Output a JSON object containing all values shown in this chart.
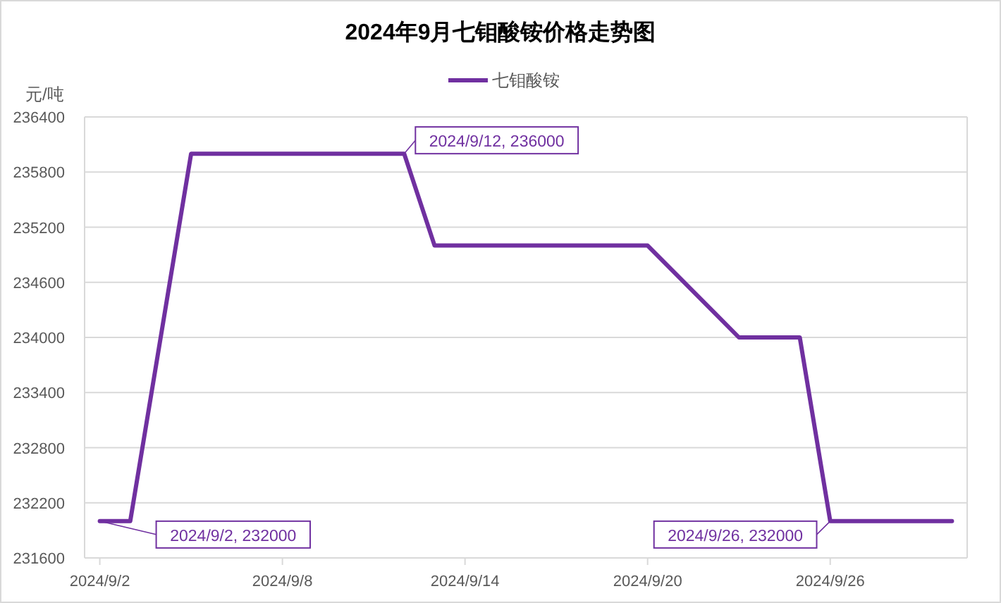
{
  "chart_data": {
    "type": "line",
    "title": "2024年9月七钼酸铵价格走势图",
    "ylabel": "元/吨",
    "x": [
      "2024-09-02",
      "2024-09-03",
      "2024-09-05",
      "2024-09-12",
      "2024-09-13",
      "2024-09-20",
      "2024-09-23",
      "2024-09-25",
      "2024-09-26",
      "2024-09-30"
    ],
    "series": [
      {
        "name": "七钼酸铵",
        "color": "#7030a0",
        "values": [
          232000,
          232000,
          236000,
          236000,
          235000,
          235000,
          234000,
          234000,
          232000,
          232000
        ]
      }
    ],
    "xlim": [
      "2024-09-01T12:00",
      "2024-09-30T12:00"
    ],
    "xticks": [
      {
        "value": "2024-09-02",
        "label": "2024/9/2"
      },
      {
        "value": "2024-09-08",
        "label": "2024/9/8"
      },
      {
        "value": "2024-09-14",
        "label": "2024/9/14"
      },
      {
        "value": "2024-09-20",
        "label": "2024/9/20"
      },
      {
        "value": "2024-09-26",
        "label": "2024/9/26"
      }
    ],
    "ylim": [
      231600,
      236400
    ],
    "yticks": [
      231600,
      232200,
      232800,
      233400,
      234000,
      234600,
      235200,
      235800,
      236400
    ],
    "grid": "y",
    "legend": "top",
    "marker": "none",
    "line_style": "solid",
    "annotations": [
      {
        "text": "2024/9/2, 232000",
        "x": "2024-09-02",
        "y": 232000
      },
      {
        "text": "2024/9/12, 236000",
        "x": "2024-09-12",
        "y": 236000
      },
      {
        "text": "2024/9/26, 232000",
        "x": "2024-09-26",
        "y": 232000
      }
    ]
  }
}
